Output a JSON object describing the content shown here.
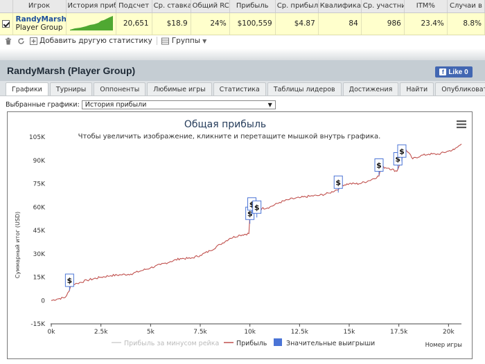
{
  "table": {
    "headers": [
      "Игрок",
      "История прибы",
      "Подсчет",
      "Ср. ставка",
      "Общий RC",
      "Прибыль",
      "Ср. прибыль",
      "Квалифика",
      "Ср. участни",
      "ITM%",
      "Случаи в"
    ],
    "row": {
      "player_name": "RandyMarsh",
      "player_group": "Player Group",
      "count": "20,651",
      "avg_stake": "$18.9",
      "total_rc": "24%",
      "profit": "$100,559",
      "avg_profit": "$4.87",
      "qualified": "84",
      "avg_entrants": "986",
      "itm": "23.4%",
      "cases": "8.8%"
    }
  },
  "toolbar": {
    "add_stats": "Добавить другую статистику",
    "groups": "Группы"
  },
  "panel": {
    "title": "RandyMarsh (Player Group)",
    "like": "Like 0",
    "tabs": [
      "Графики",
      "Турниры",
      "Оппоненты",
      "Любимые игры",
      "Статистика",
      "Таблицы лидеров",
      "Достижения",
      "Найти",
      "Опубликовать"
    ],
    "active_tab": "Графики",
    "select_label": "Выбранные графики:",
    "select_value": "История прибыли"
  },
  "chart_data": {
    "type": "line",
    "title": "Общая прибыль",
    "subtitle": "Чтобы увеличить изображение, кликните и перетащите мышкой внутрь графика.",
    "xlabel": "Номер игры",
    "ylabel": "Суммарный итог (USD)",
    "xlim": [
      0,
      20651
    ],
    "ylim": [
      -15000,
      105000
    ],
    "x_ticks": [
      "0k",
      "2.5k",
      "5k",
      "7.5k",
      "10k",
      "12.5k",
      "15k",
      "17.5k",
      "20k"
    ],
    "y_ticks": [
      "-15K",
      "0",
      "15K",
      "30K",
      "45K",
      "60K",
      "75K",
      "90K",
      "105K"
    ],
    "grid": false,
    "legend_position": "bottom",
    "series": [
      {
        "name": "Прибыль за минусом рейка",
        "color": "#cccccc",
        "visible": false
      },
      {
        "name": "Прибыль",
        "color": "#c0504d",
        "x": [
          0,
          300,
          700,
          900,
          1000,
          1300,
          1800,
          2500,
          3000,
          3500,
          4000,
          4500,
          5000,
          5500,
          6000,
          6500,
          7000,
          7500,
          8000,
          8500,
          9000,
          9500,
          9950,
          10000,
          10050,
          10200,
          10300,
          10450,
          10600,
          11000,
          11500,
          12000,
          12500,
          13000,
          13500,
          14000,
          14500,
          14600,
          15000,
          15500,
          16000,
          16500,
          16600,
          17000,
          17400,
          17500,
          17600,
          17700,
          17800,
          18200,
          18600,
          19000,
          19500,
          20000,
          20300,
          20651
        ],
        "y": [
          0,
          1000,
          2000,
          6000,
          10000,
          11000,
          13000,
          15000,
          16000,
          16500,
          17000,
          19000,
          21000,
          23000,
          25000,
          27000,
          27000,
          29000,
          32000,
          36000,
          40000,
          42000,
          43000,
          55000,
          64000,
          62000,
          59000,
          57000,
          59000,
          60000,
          63000,
          65000,
          66000,
          67000,
          67500,
          69000,
          72000,
          74000,
          75000,
          75000,
          77000,
          80000,
          86000,
          85000,
          83000,
          86000,
          90000,
          93000,
          98000,
          91000,
          93000,
          94000,
          94000,
          96000,
          97000,
          100559
        ]
      },
      {
        "name": "Значительные выигрыши",
        "color": "#4a74d6",
        "type": "flags",
        "x": [
          920,
          10000,
          10100,
          10350,
          14450,
          16500,
          17450,
          17650
        ],
        "y": [
          9000,
          52000,
          58000,
          56000,
          72000,
          83000,
          87000,
          92000
        ],
        "flag": "$"
      }
    ]
  }
}
